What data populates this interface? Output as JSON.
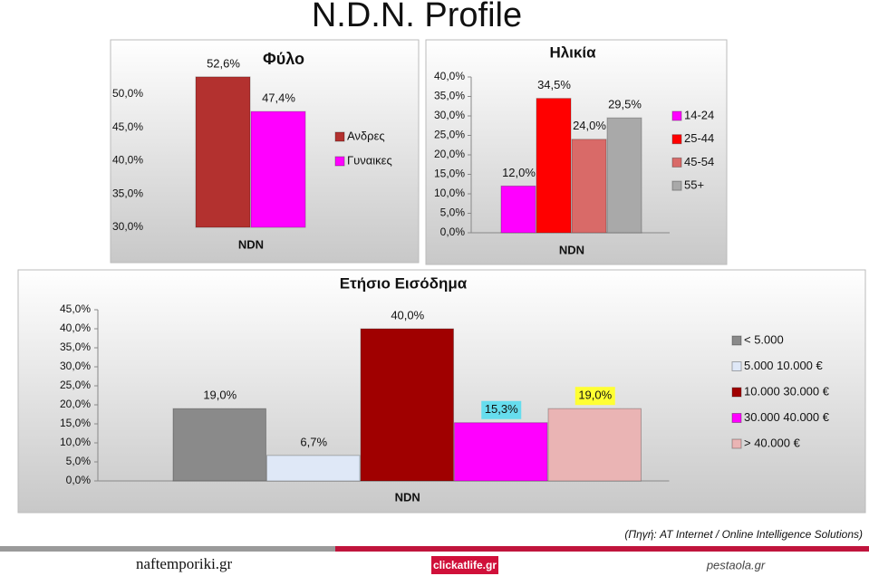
{
  "page_title": "N.D.N. Profile",
  "chart_data": [
    {
      "type": "bar",
      "title": "Φύλο",
      "categories": [
        "NDN"
      ],
      "ylim": [
        30,
        50
      ],
      "yticks": [
        {
          "value": 30,
          "label": "30,0%"
        },
        {
          "value": 35,
          "label": "35,0%"
        },
        {
          "value": 40,
          "label": "40,0%"
        },
        {
          "value": 45,
          "label": "45,0%"
        },
        {
          "value": 50,
          "label": "50,0%"
        }
      ],
      "legend": "right",
      "series": [
        {
          "name": "Ανδρες",
          "color": "#b3312f",
          "values": [
            52.6
          ],
          "value_labels": [
            "52,6%"
          ]
        },
        {
          "name": "Γυναικες",
          "color": "#ff00ff",
          "values": [
            47.4
          ],
          "value_labels": [
            "47,4%"
          ]
        }
      ]
    },
    {
      "type": "bar",
      "title": "Ηλικία",
      "categories": [
        "NDN"
      ],
      "ylim": [
        0,
        40
      ],
      "yticks": [
        {
          "value": 0,
          "label": "0,0%"
        },
        {
          "value": 5,
          "label": "5,0%"
        },
        {
          "value": 10,
          "label": "10,0%"
        },
        {
          "value": 15,
          "label": "15,0%"
        },
        {
          "value": 20,
          "label": "20,0%"
        },
        {
          "value": 25,
          "label": "25,0%"
        },
        {
          "value": 30,
          "label": "30,0%"
        },
        {
          "value": 35,
          "label": "35,0%"
        },
        {
          "value": 40,
          "label": "40,0%"
        }
      ],
      "legend": "right",
      "series": [
        {
          "name": "14-24",
          "color": "#ff00ff",
          "values": [
            12
          ],
          "value_labels": [
            "12,0%"
          ]
        },
        {
          "name": "25-44",
          "color": "#ff0000",
          "values": [
            34.5
          ],
          "value_labels": [
            "34,5%"
          ]
        },
        {
          "name": "45-54",
          "color": "#d96a68",
          "values": [
            24
          ],
          "value_labels": [
            "24,0%"
          ]
        },
        {
          "name": "55+",
          "color": "#a9a9a9",
          "values": [
            29.5
          ],
          "value_labels": [
            "29,5%"
          ]
        }
      ]
    },
    {
      "type": "bar",
      "title": "Ετήσιο Εισόδημα",
      "categories": [
        "NDN"
      ],
      "ylim": [
        0,
        45
      ],
      "yticks": [
        {
          "value": 0,
          "label": "0,0%"
        },
        {
          "value": 5,
          "label": "5,0%"
        },
        {
          "value": 10,
          "label": "10,0%"
        },
        {
          "value": 15,
          "label": "15,0%"
        },
        {
          "value": 20,
          "label": "20,0%"
        },
        {
          "value": 25,
          "label": "25,0%"
        },
        {
          "value": 30,
          "label": "30,0%"
        },
        {
          "value": 35,
          "label": "35,0%"
        },
        {
          "value": 40,
          "label": "40,0%"
        },
        {
          "value": 45,
          "label": "45,0%"
        }
      ],
      "legend": "right",
      "series": [
        {
          "name": "< 5.000",
          "color": "#8a8a8a",
          "values": [
            19
          ],
          "value_labels": [
            "19,0%"
          ]
        },
        {
          "name": "5.000 10.000 €",
          "color": "#dfe8f7",
          "values": [
            6.7
          ],
          "value_labels": [
            "6,7%"
          ]
        },
        {
          "name": "10.000 30.000 €",
          "color": "#a00000",
          "values": [
            40
          ],
          "value_labels": [
            "40,0%"
          ]
        },
        {
          "name": "30.000 40.000 €",
          "color": "#ff00ff",
          "values": [
            15.3
          ],
          "value_labels": [
            "15,3%"
          ],
          "label_background": "#66ddee"
        },
        {
          "name": "> 40.000 €",
          "color": "#eab4b4",
          "values": [
            19
          ],
          "value_labels": [
            "19,0%"
          ],
          "label_background": "#ffff33"
        }
      ]
    }
  ],
  "source": "(Πηγή: AT Internet / Online Intelligence Solutions)",
  "logos": [
    "naftemporiki.gr",
    "clickatlife.gr",
    "pestaola.gr"
  ]
}
